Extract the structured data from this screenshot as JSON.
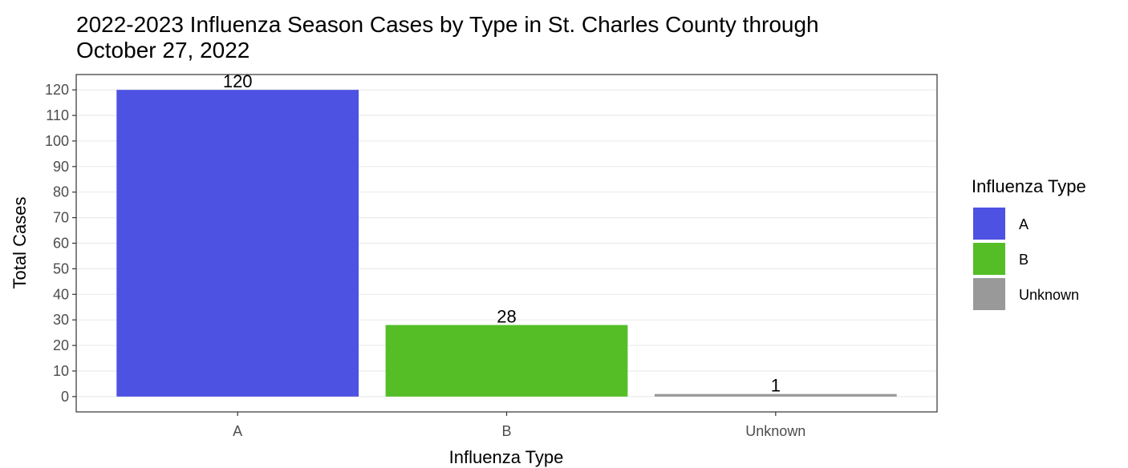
{
  "chart_data": {
    "type": "bar",
    "title": "2022-2023 Influenza Season Cases by Type in St. Charles County through October 27, 2022",
    "x_label": "Influenza Type",
    "y_label": "Total Cases",
    "legend_title": "Influenza Type",
    "categories": [
      "A",
      "B",
      "Unknown"
    ],
    "values": [
      120,
      28,
      1
    ],
    "colors": [
      "#4e52e2",
      "#55be27",
      "#999999"
    ],
    "ylim": [
      -6,
      126
    ],
    "yticks": [
      0,
      10,
      20,
      30,
      40,
      50,
      60,
      70,
      80,
      90,
      100,
      110,
      120
    ],
    "grid": true,
    "legend_position": "right"
  }
}
